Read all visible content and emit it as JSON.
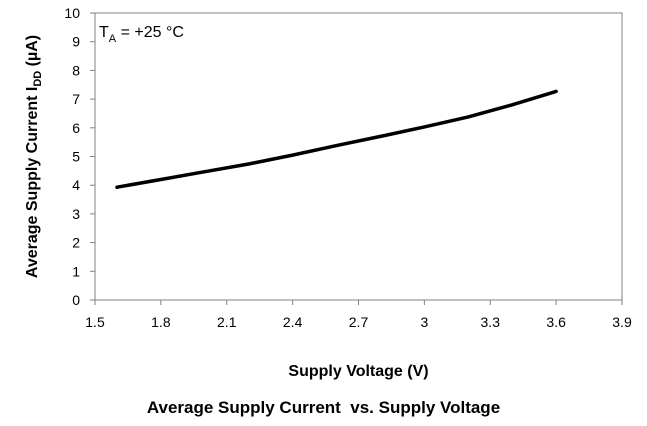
{
  "chart_data": {
    "type": "line",
    "title": "Average Supply Current  vs. Supply Voltage",
    "xlabel": "Supply Voltage (V)",
    "ylabel": {
      "main": "Average Supply Current I",
      "sub": "DD",
      "unit": " (µA)"
    },
    "annotation": {
      "main": "T",
      "sub": "A",
      "rest": " = +25 °C"
    },
    "xlim": [
      1.5,
      3.9
    ],
    "ylim": [
      0,
      10
    ],
    "x_ticks": [
      "1.5",
      "1.8",
      "2.1",
      "2.4",
      "2.7",
      "3",
      "3.3",
      "3.6",
      "3.9"
    ],
    "y_ticks": [
      "0",
      "1",
      "2",
      "3",
      "4",
      "5",
      "6",
      "7",
      "8",
      "9",
      "10"
    ],
    "grid": false,
    "series": [
      {
        "x": [
          1.6,
          1.8,
          2.0,
          2.2,
          2.4,
          2.6,
          2.8,
          3.0,
          3.2,
          3.4,
          3.6
        ],
        "y": [
          3.93,
          4.2,
          4.47,
          4.74,
          5.05,
          5.38,
          5.7,
          6.03,
          6.38,
          6.8,
          7.27
        ]
      }
    ],
    "colors": {
      "line": "#000000",
      "axis": "#808080"
    }
  }
}
